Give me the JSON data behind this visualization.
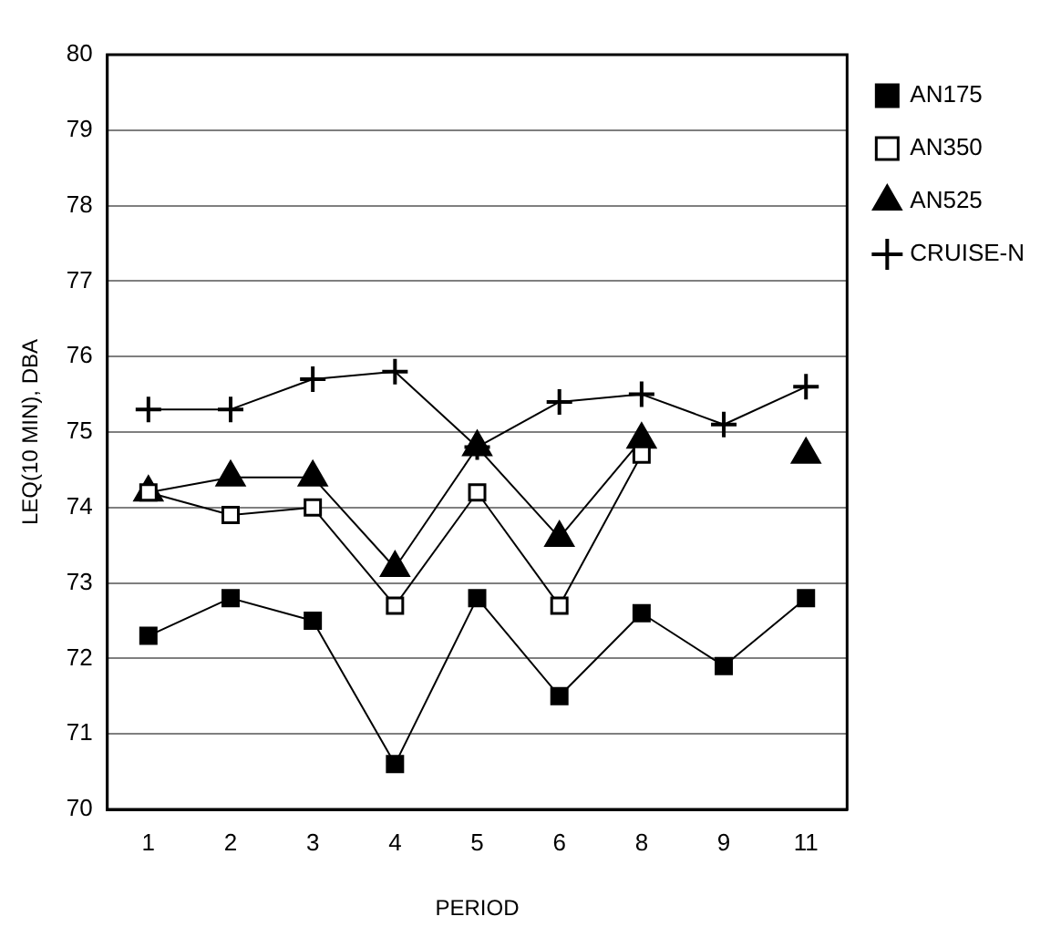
{
  "chart_data": {
    "type": "line",
    "xlabel": "PERIOD",
    "ylabel": "LEQ(10 MIN), DBA",
    "categories": [
      "1",
      "2",
      "3",
      "4",
      "5",
      "6",
      "8",
      "9",
      "11"
    ],
    "series": [
      {
        "name": "AN175",
        "color": "#000000",
        "marker": "square",
        "values": [
          72.3,
          72.8,
          72.5,
          70.6,
          72.8,
          71.5,
          72.6,
          71.9,
          72.8
        ]
      },
      {
        "name": "AN350",
        "color": "#000000",
        "marker": "square",
        "values": [
          74.2,
          73.9,
          74.0,
          72.7,
          74.2,
          72.7,
          74.7,
          null,
          null
        ]
      },
      {
        "name": "AN525",
        "color": "#000000",
        "marker": "triangle",
        "values": [
          74.2,
          74.4,
          74.4,
          73.2,
          74.8,
          73.6,
          74.9,
          null,
          74.7
        ]
      },
      {
        "name": "CRUISE-N",
        "color": "#000000",
        "marker": "cross",
        "values": [
          75.3,
          75.3,
          75.7,
          75.8,
          74.8,
          75.4,
          75.5,
          75.1,
          75.6
        ]
      }
    ],
    "ylim": [
      70,
      80
    ],
    "yticks": [
      70,
      71,
      72,
      73,
      74,
      75,
      76,
      77,
      78,
      79,
      80
    ],
    "grid": "y",
    "legend": "top right",
    "line_style": "solid"
  }
}
